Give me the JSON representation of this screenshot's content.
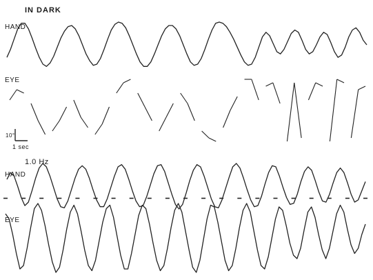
{
  "header": {
    "condition": "IN DARK",
    "freq_label": "1.0 Hz"
  },
  "labels": {
    "hand1": "HAND",
    "eye1": "EYE",
    "hand2": "HAND",
    "eye2": "EYE"
  },
  "scale_bar": {
    "amplitude": "10°",
    "time": "1 sec"
  },
  "colors": {
    "trace": "#222222",
    "background": "#ffffff"
  },
  "chart_data": [
    {
      "type": "line",
      "title": "IN DARK",
      "ylabel": "HAND",
      "series": [
        {
          "name": "HAND",
          "x": [
            0,
            1,
            2,
            3,
            4,
            5,
            6,
            7,
            8,
            9,
            10,
            11,
            12,
            13,
            14,
            15,
            16,
            17,
            18,
            19,
            20,
            21,
            22,
            23,
            24,
            25,
            26,
            27,
            28,
            29,
            30,
            31,
            32,
            33,
            34,
            35,
            36,
            37,
            38,
            39,
            40,
            41,
            42,
            43,
            44,
            45,
            46,
            47,
            48,
            49,
            50,
            51,
            52,
            53,
            54,
            55,
            56,
            57,
            58,
            59,
            60,
            61,
            62,
            63,
            64,
            65,
            66,
            67,
            68,
            69,
            70,
            71,
            72,
            73,
            74,
            75,
            76,
            77,
            78,
            79,
            80,
            81,
            82,
            83,
            84,
            85,
            86,
            87,
            88,
            89,
            90,
            91,
            92,
            93,
            94,
            95,
            96,
            97,
            98,
            99,
            100
          ],
          "values": [
            -0.55,
            -0.2,
            0.25,
            0.7,
            0.95,
            0.95,
            0.7,
            0.3,
            -0.15,
            -0.55,
            -0.85,
            -0.95,
            -0.8,
            -0.5,
            -0.1,
            0.3,
            0.6,
            0.8,
            0.85,
            0.7,
            0.4,
            0,
            -0.4,
            -0.7,
            -0.9,
            -0.85,
            -0.6,
            -0.2,
            0.25,
            0.65,
            0.9,
            1,
            0.95,
            0.75,
            0.4,
            0,
            -0.4,
            -0.75,
            -0.95,
            -0.95,
            -0.75,
            -0.4,
            0,
            0.4,
            0.7,
            0.85,
            0.85,
            0.7,
            0.4,
            0,
            -0.4,
            -0.75,
            -0.9,
            -0.85,
            -0.6,
            -0.2,
            0.25,
            0.65,
            0.95,
            1,
            0.95,
            0.8,
            0.55,
            0.25,
            -0.1,
            -0.45,
            -0.75,
            -0.9,
            -0.85,
            -0.55,
            -0.1,
            0.35,
            0.55,
            0.4,
            0.05,
            -0.3,
            -0.4,
            -0.2,
            0.15,
            0.5,
            0.65,
            0.55,
            0.2,
            -0.2,
            -0.4,
            -0.3,
            0,
            0.35,
            0.55,
            0.45,
            0.1,
            -0.3,
            -0.55,
            -0.45,
            -0.1,
            0.35,
            0.65,
            0.75,
            0.55,
            0.2,
            0
          ]
        }
      ]
    },
    {
      "type": "line",
      "ylabel": "EYE",
      "series": [
        {
          "name": "EYE",
          "x": [
            0,
            2,
            4,
            6,
            8,
            10,
            12,
            14,
            16,
            18,
            20,
            22,
            24,
            26,
            28,
            30,
            32,
            34,
            36,
            38,
            40,
            42,
            44,
            46,
            48,
            50,
            52,
            54,
            56,
            58,
            60,
            62,
            64,
            66,
            68,
            70,
            72,
            74,
            76,
            78,
            80,
            82,
            84,
            86,
            88,
            90,
            92,
            94,
            96,
            98,
            100
          ],
          "values": [
            0.3,
            0.6,
            0.5,
            0.2,
            -0.3,
            -0.7,
            -0.6,
            -0.3,
            0.1,
            0.3,
            -0.2,
            -0.5,
            -0.7,
            -0.4,
            0.1,
            0.5,
            0.8,
            0.9,
            0.5,
            0.1,
            -0.3,
            -0.6,
            -0.2,
            0.2,
            0.5,
            0.2,
            -0.3,
            -0.6,
            -0.8,
            -0.9,
            -0.5,
            0,
            0.4,
            0.9,
            0.9,
            0.3,
            0.7,
            0.8,
            0.2,
            -0.9,
            0.8,
            -0.8,
            0.3,
            0.8,
            0.7,
            -0.9,
            0.9,
            0.8,
            -0.8,
            0.6,
            0.7
          ]
        }
      ]
    },
    {
      "type": "line",
      "title": "1.0 Hz",
      "ylabel": "HAND",
      "series": [
        {
          "name": "HAND",
          "x": [
            0,
            1,
            2,
            3,
            4,
            5,
            6,
            7,
            8,
            9,
            10,
            11,
            12,
            13,
            14,
            15,
            16,
            17,
            18,
            19,
            20,
            21,
            22,
            23,
            24,
            25,
            26,
            27,
            28,
            29,
            30,
            31,
            32,
            33,
            34,
            35,
            36,
            37,
            38,
            39,
            40,
            41,
            42,
            43,
            44,
            45,
            46,
            47,
            48,
            49,
            50,
            51,
            52,
            53,
            54,
            55,
            56,
            57,
            58,
            59,
            60,
            61,
            62,
            63,
            64,
            65,
            66,
            67,
            68,
            69,
            70,
            71,
            72,
            73,
            74,
            75,
            76,
            77,
            78,
            79,
            80,
            81,
            82,
            83,
            84,
            85,
            86,
            87,
            88,
            89,
            90,
            91,
            92,
            93,
            94,
            95,
            96,
            97,
            98,
            99,
            100
          ],
          "values": [
            0.3,
            0.6,
            0.45,
            0,
            -0.5,
            -0.85,
            -0.7,
            -0.2,
            0.35,
            0.8,
            1,
            0.85,
            0.45,
            -0.05,
            -0.55,
            -0.9,
            -0.95,
            -0.65,
            -0.15,
            0.35,
            0.75,
            0.9,
            0.75,
            0.35,
            -0.15,
            -0.6,
            -0.9,
            -0.9,
            -0.55,
            -0.05,
            0.45,
            0.85,
            0.95,
            0.75,
            0.3,
            -0.2,
            -0.65,
            -0.9,
            -0.85,
            -0.45,
            0.05,
            0.55,
            0.9,
            0.95,
            0.65,
            0.15,
            -0.35,
            -0.8,
            -1,
            -0.8,
            -0.3,
            0.25,
            0.7,
            0.95,
            0.85,
            0.45,
            -0.05,
            -0.55,
            -0.9,
            -0.95,
            -0.6,
            -0.1,
            0.4,
            0.85,
            1,
            0.8,
            0.35,
            -0.15,
            -0.6,
            -0.9,
            -0.85,
            -0.45,
            0.1,
            0.6,
            0.9,
            0.85,
            0.45,
            -0.05,
            -0.5,
            -0.8,
            -0.75,
            -0.35,
            0.2,
            0.65,
            0.85,
            0.7,
            0.25,
            -0.25,
            -0.65,
            -0.7,
            -0.35,
            0.15,
            0.6,
            0.8,
            0.6,
            0.15,
            -0.35,
            -0.7,
            -0.6,
            -0.2,
            0.2
          ]
        }
      ]
    },
    {
      "type": "line",
      "ylabel": "EYE",
      "series": [
        {
          "name": "EYE",
          "x": [
            0,
            1,
            2,
            3,
            4,
            5,
            6,
            7,
            8,
            9,
            10,
            11,
            12,
            13,
            14,
            15,
            16,
            17,
            18,
            19,
            20,
            21,
            22,
            23,
            24,
            25,
            26,
            27,
            28,
            29,
            30,
            31,
            32,
            33,
            34,
            35,
            36,
            37,
            38,
            39,
            40,
            41,
            42,
            43,
            44,
            45,
            46,
            47,
            48,
            49,
            50,
            51,
            52,
            53,
            54,
            55,
            56,
            57,
            58,
            59,
            60,
            61,
            62,
            63,
            64,
            65,
            66,
            67,
            68,
            69,
            70,
            71,
            72,
            73,
            74,
            75,
            76,
            77,
            78,
            79,
            80,
            81,
            82,
            83,
            84,
            85,
            86,
            87,
            88,
            89,
            90,
            91,
            92,
            93,
            94,
            95,
            96,
            97,
            98,
            99,
            100
          ],
          "values": [
            0.7,
            0.55,
            0.1,
            -0.45,
            -0.9,
            -0.8,
            -0.3,
            0.3,
            0.85,
            1,
            0.8,
            0.35,
            -0.2,
            -0.7,
            -1,
            -0.85,
            -0.35,
            0.25,
            0.75,
            0.95,
            0.7,
            0.2,
            -0.35,
            -0.8,
            -0.95,
            -0.65,
            -0.1,
            0.45,
            0.85,
            0.95,
            0.6,
            0.05,
            -0.5,
            -0.9,
            -0.9,
            -0.45,
            0.1,
            0.65,
            0.95,
            0.85,
            0.4,
            -0.15,
            -0.65,
            -0.95,
            -0.8,
            -0.3,
            0.3,
            0.8,
            1,
            0.75,
            0.2,
            -0.35,
            -0.85,
            -1,
            -0.65,
            -0.05,
            0.55,
            0.95,
            0.9,
            0.45,
            -0.1,
            -0.65,
            -0.95,
            -0.8,
            -0.3,
            0.3,
            0.8,
            1,
            0.75,
            0.2,
            -0.35,
            -0.8,
            -0.9,
            -0.55,
            0,
            0.55,
            0.9,
            0.8,
            0.35,
            -0.15,
            -0.5,
            -0.6,
            -0.3,
            0.25,
            0.75,
            0.9,
            0.6,
            0.1,
            -0.35,
            -0.6,
            -0.3,
            0.2,
            0.7,
            0.95,
            0.75,
            0.25,
            -0.2,
            -0.45,
            -0.3,
            0.1,
            0.4
          ]
        },
        {
          "name": "target",
          "x": [
            0,
            5,
            10,
            15,
            20,
            25,
            30,
            35,
            40,
            45,
            50,
            55,
            60,
            65,
            70,
            75,
            80,
            85,
            90,
            95,
            100
          ],
          "values": [
            1.15,
            1.15,
            1.15,
            1.15,
            1.15,
            1.15,
            1.15,
            1.15,
            1.15,
            1.15,
            1.15,
            1.15,
            1.15,
            1.15,
            1.15,
            1.15,
            1.15,
            1.15,
            1.15,
            1.15,
            1.15
          ]
        }
      ]
    }
  ]
}
